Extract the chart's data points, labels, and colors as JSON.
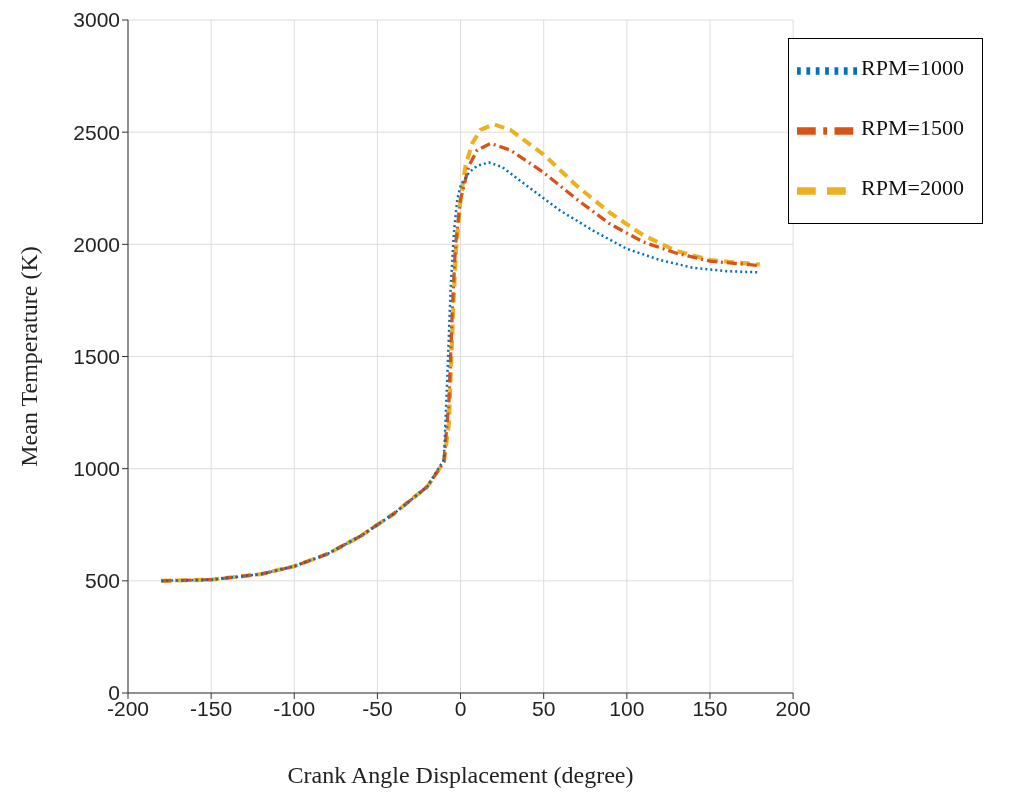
{
  "chart_data": {
    "type": "line",
    "xlabel": "Crank Angle Displacement (degree)",
    "ylabel": "Mean Temperature (K)",
    "xlim": [
      -200,
      200
    ],
    "xticks": [
      -200,
      -150,
      -100,
      -50,
      0,
      50,
      100,
      150,
      200
    ],
    "ylim": [
      0,
      3000
    ],
    "yticks": [
      0,
      500,
      1000,
      1500,
      2000,
      2500,
      3000
    ],
    "grid": true,
    "legend": "top right",
    "marker": "none",
    "series": [
      {
        "name": "RPM=1000",
        "color": "#0072bd",
        "line_style": "dotted",
        "x": [
          -180,
          -150,
          -120,
          -100,
          -80,
          -60,
          -40,
          -20,
          -10,
          -8,
          -6,
          -4,
          -2,
          0,
          5,
          10,
          17,
          25,
          40,
          60,
          80,
          100,
          120,
          140,
          160,
          180
        ],
        "values": [
          500,
          505,
          530,
          565,
          620,
          700,
          800,
          920,
          1040,
          1400,
          1800,
          2050,
          2200,
          2260,
          2320,
          2350,
          2365,
          2345,
          2260,
          2150,
          2060,
          1980,
          1930,
          1895,
          1880,
          1875
        ]
      },
      {
        "name": "RPM=1500",
        "color": "#d95319",
        "line_style": "dashdot",
        "x": [
          -180,
          -150,
          -120,
          -100,
          -80,
          -60,
          -40,
          -20,
          -10,
          -7,
          -5,
          -3,
          0,
          5,
          10,
          18,
          30,
          50,
          70,
          90,
          110,
          130,
          150,
          180
        ],
        "values": [
          500,
          505,
          530,
          565,
          620,
          700,
          800,
          920,
          1030,
          1300,
          1700,
          2000,
          2200,
          2350,
          2420,
          2450,
          2420,
          2320,
          2200,
          2090,
          2010,
          1960,
          1925,
          1905
        ]
      },
      {
        "name": "RPM=2000",
        "color": "#edb120",
        "line_style": "dashed",
        "x": [
          -180,
          -150,
          -120,
          -100,
          -80,
          -60,
          -40,
          -20,
          -10,
          -7,
          -5,
          -3,
          0,
          3,
          7,
          12,
          20,
          30,
          50,
          70,
          90,
          110,
          130,
          150,
          180
        ],
        "values": [
          500,
          505,
          530,
          565,
          620,
          700,
          800,
          920,
          1030,
          1200,
          1600,
          1950,
          2200,
          2350,
          2450,
          2510,
          2535,
          2510,
          2400,
          2260,
          2140,
          2040,
          1970,
          1930,
          1910
        ]
      }
    ]
  }
}
